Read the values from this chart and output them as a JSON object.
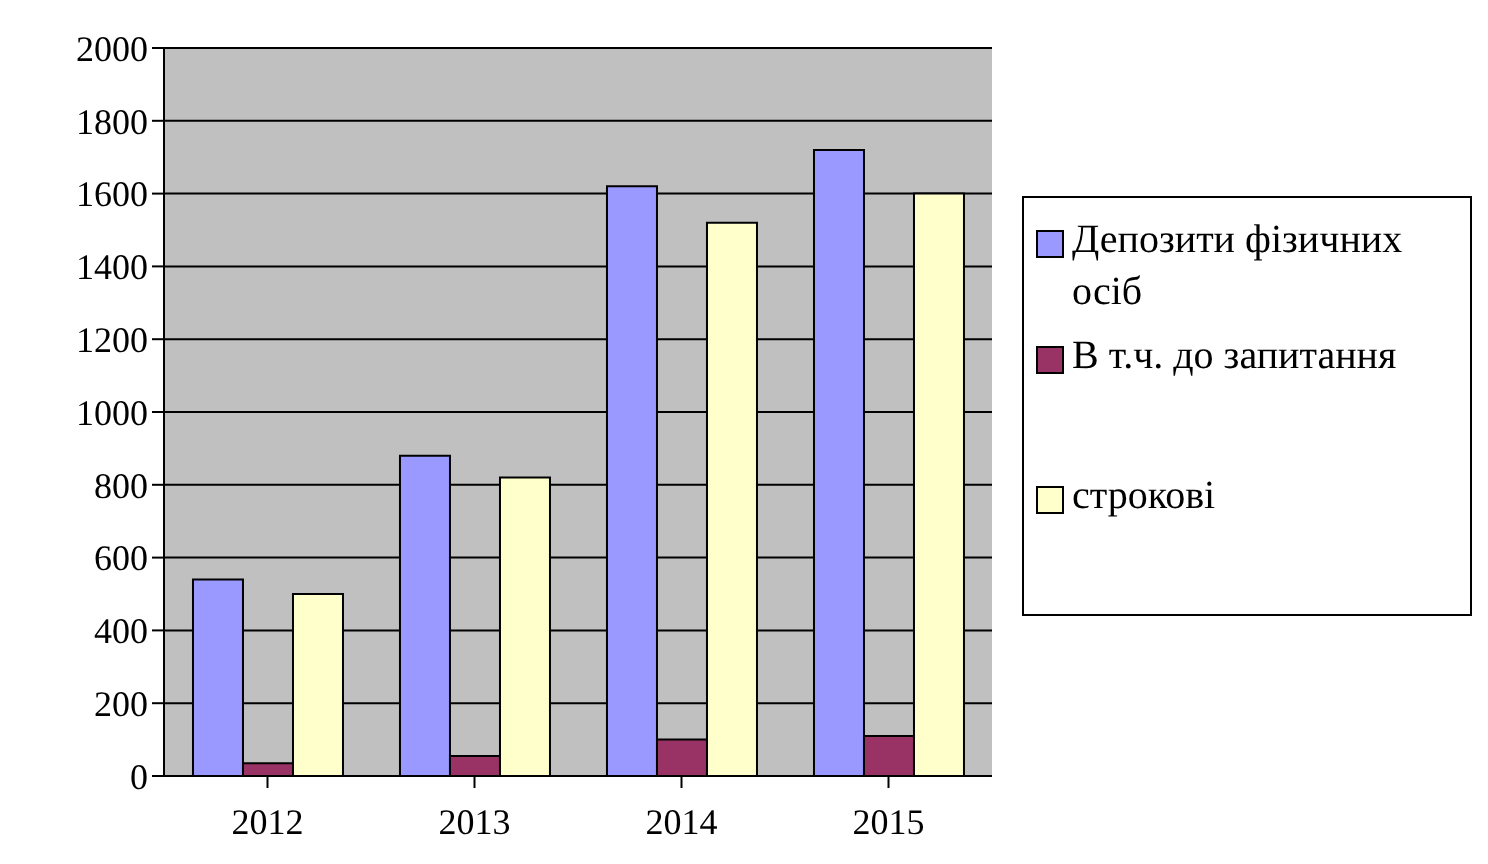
{
  "chart_data": {
    "type": "bar",
    "categories": [
      "2012",
      "2013",
      "2014",
      "2015"
    ],
    "series": [
      {
        "name": "Депозити фізичних осіб",
        "color": "#9999ff",
        "values": [
          540,
          880,
          1620,
          1720
        ]
      },
      {
        "name": "В т.ч. до запитання",
        "color": "#993366",
        "values": [
          35,
          55,
          100,
          110
        ]
      },
      {
        "name": "строкові",
        "color": "#ffffcc",
        "values": [
          500,
          820,
          1520,
          1600
        ]
      }
    ],
    "ylim": [
      0,
      2000
    ],
    "yticks": [
      0,
      200,
      400,
      600,
      800,
      1000,
      1200,
      1400,
      1600,
      1800,
      2000
    ],
    "grid": "y",
    "legend": "right"
  }
}
